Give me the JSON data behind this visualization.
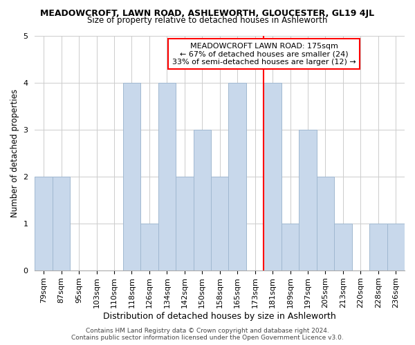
{
  "title": "MEADOWCROFT, LAWN ROAD, ASHLEWORTH, GLOUCESTER, GL19 4JL",
  "subtitle": "Size of property relative to detached houses in Ashleworth",
  "xlabel": "Distribution of detached houses by size in Ashleworth",
  "ylabel": "Number of detached properties",
  "footer_line1": "Contains HM Land Registry data © Crown copyright and database right 2024.",
  "footer_line2": "Contains public sector information licensed under the Open Government Licence v3.0.",
  "bar_labels": [
    "79sqm",
    "87sqm",
    "95sqm",
    "103sqm",
    "110sqm",
    "118sqm",
    "126sqm",
    "134sqm",
    "142sqm",
    "150sqm",
    "158sqm",
    "165sqm",
    "173sqm",
    "181sqm",
    "189sqm",
    "197sqm",
    "205sqm",
    "213sqm",
    "220sqm",
    "228sqm",
    "236sqm"
  ],
  "bar_values": [
    2,
    2,
    0,
    0,
    0,
    4,
    1,
    4,
    2,
    3,
    2,
    4,
    0,
    4,
    1,
    3,
    2,
    1,
    0,
    1,
    1
  ],
  "bar_color": "#c8d8eb",
  "bar_edgecolor": "#a0b8d0",
  "reference_line_x": 12.5,
  "reference_line_color": "red",
  "annotation_title": "MEADOWCROFT LAWN ROAD: 175sqm",
  "annotation_line1": "← 67% of detached houses are smaller (24)",
  "annotation_line2": "33% of semi-detached houses are larger (12) →",
  "annotation_box_color": "white",
  "annotation_box_edgecolor": "red",
  "ylim": [
    0,
    5
  ],
  "yticks": [
    0,
    1,
    2,
    3,
    4,
    5
  ],
  "background_color": "white",
  "grid_color": "#cccccc",
  "title_fontsize": 9,
  "subtitle_fontsize": 8.5,
  "xlabel_fontsize": 9,
  "ylabel_fontsize": 8.5,
  "tick_fontsize": 8,
  "annotation_fontsize": 8,
  "footer_fontsize": 6.5
}
